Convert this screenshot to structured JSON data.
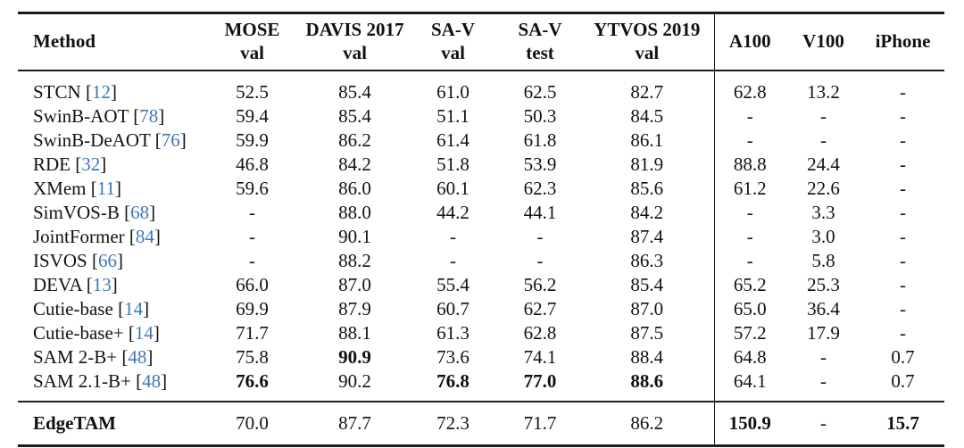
{
  "colors": {
    "citation_blue": "#3f76b6",
    "text": "#111111",
    "rule": "#1c1c1c",
    "background": "#ffffff"
  },
  "table": {
    "header": {
      "method_label": "Method",
      "columns": [
        {
          "label": "MOSE",
          "sub": "val"
        },
        {
          "label": "DAVIS 2017",
          "sub": "val"
        },
        {
          "label": "SA-V",
          "sub": "val"
        },
        {
          "label": "SA-V",
          "sub": "test"
        },
        {
          "label": "YTVOS 2019",
          "sub": "val"
        },
        {
          "label": "A100",
          "sub": ""
        },
        {
          "label": "V100",
          "sub": ""
        },
        {
          "label": "iPhone",
          "sub": ""
        }
      ]
    },
    "rows": [
      {
        "name": "STCN",
        "cite": "12",
        "values": [
          "52.5",
          "85.4",
          "61.0",
          "62.5",
          "82.7",
          "62.8",
          "13.2",
          "-"
        ],
        "bold": []
      },
      {
        "name": "SwinB-AOT",
        "cite": "78",
        "values": [
          "59.4",
          "85.4",
          "51.1",
          "50.3",
          "84.5",
          "-",
          "-",
          "-"
        ],
        "bold": []
      },
      {
        "name": "SwinB-DeAOT",
        "cite": "76",
        "values": [
          "59.9",
          "86.2",
          "61.4",
          "61.8",
          "86.1",
          "-",
          "-",
          "-"
        ],
        "bold": []
      },
      {
        "name": "RDE",
        "cite": "32",
        "values": [
          "46.8",
          "84.2",
          "51.8",
          "53.9",
          "81.9",
          "88.8",
          "24.4",
          "-"
        ],
        "bold": []
      },
      {
        "name": "XMem",
        "cite": "11",
        "values": [
          "59.6",
          "86.0",
          "60.1",
          "62.3",
          "85.6",
          "61.2",
          "22.6",
          "-"
        ],
        "bold": []
      },
      {
        "name": "SimVOS-B",
        "cite": "68",
        "values": [
          "-",
          "88.0",
          "44.2",
          "44.1",
          "84.2",
          "-",
          "3.3",
          "-"
        ],
        "bold": []
      },
      {
        "name": "JointFormer",
        "cite": "84",
        "values": [
          "-",
          "90.1",
          "-",
          "-",
          "87.4",
          "-",
          "3.0",
          "-"
        ],
        "bold": []
      },
      {
        "name": "ISVOS",
        "cite": "66",
        "values": [
          "-",
          "88.2",
          "-",
          "-",
          "86.3",
          "-",
          "5.8",
          "-"
        ],
        "bold": []
      },
      {
        "name": "DEVA",
        "cite": "13",
        "values": [
          "66.0",
          "87.0",
          "55.4",
          "56.2",
          "85.4",
          "65.2",
          "25.3",
          "-"
        ],
        "bold": []
      },
      {
        "name": "Cutie-base",
        "cite": "14",
        "values": [
          "69.9",
          "87.9",
          "60.7",
          "62.7",
          "87.0",
          "65.0",
          "36.4",
          "-"
        ],
        "bold": []
      },
      {
        "name": "Cutie-base+",
        "cite": "14",
        "values": [
          "71.7",
          "88.1",
          "61.3",
          "62.8",
          "87.5",
          "57.2",
          "17.9",
          "-"
        ],
        "bold": []
      },
      {
        "name": "SAM 2-B+",
        "cite": "48",
        "values": [
          "75.8",
          "90.9",
          "73.6",
          "74.1",
          "88.4",
          "64.8",
          "-",
          "0.7"
        ],
        "bold": [
          1
        ]
      },
      {
        "name": "SAM 2.1-B+",
        "cite": "48",
        "values": [
          "76.6",
          "90.2",
          "76.8",
          "77.0",
          "88.6",
          "64.1",
          "-",
          "0.7"
        ],
        "bold": [
          0,
          2,
          3,
          4
        ]
      }
    ],
    "footer": {
      "name": "EdgeTAM",
      "cite": "",
      "name_bold": true,
      "values": [
        "70.0",
        "87.7",
        "72.3",
        "71.7",
        "86.2",
        "150.9",
        "-",
        "15.7"
      ],
      "bold": [
        5,
        7
      ]
    }
  }
}
